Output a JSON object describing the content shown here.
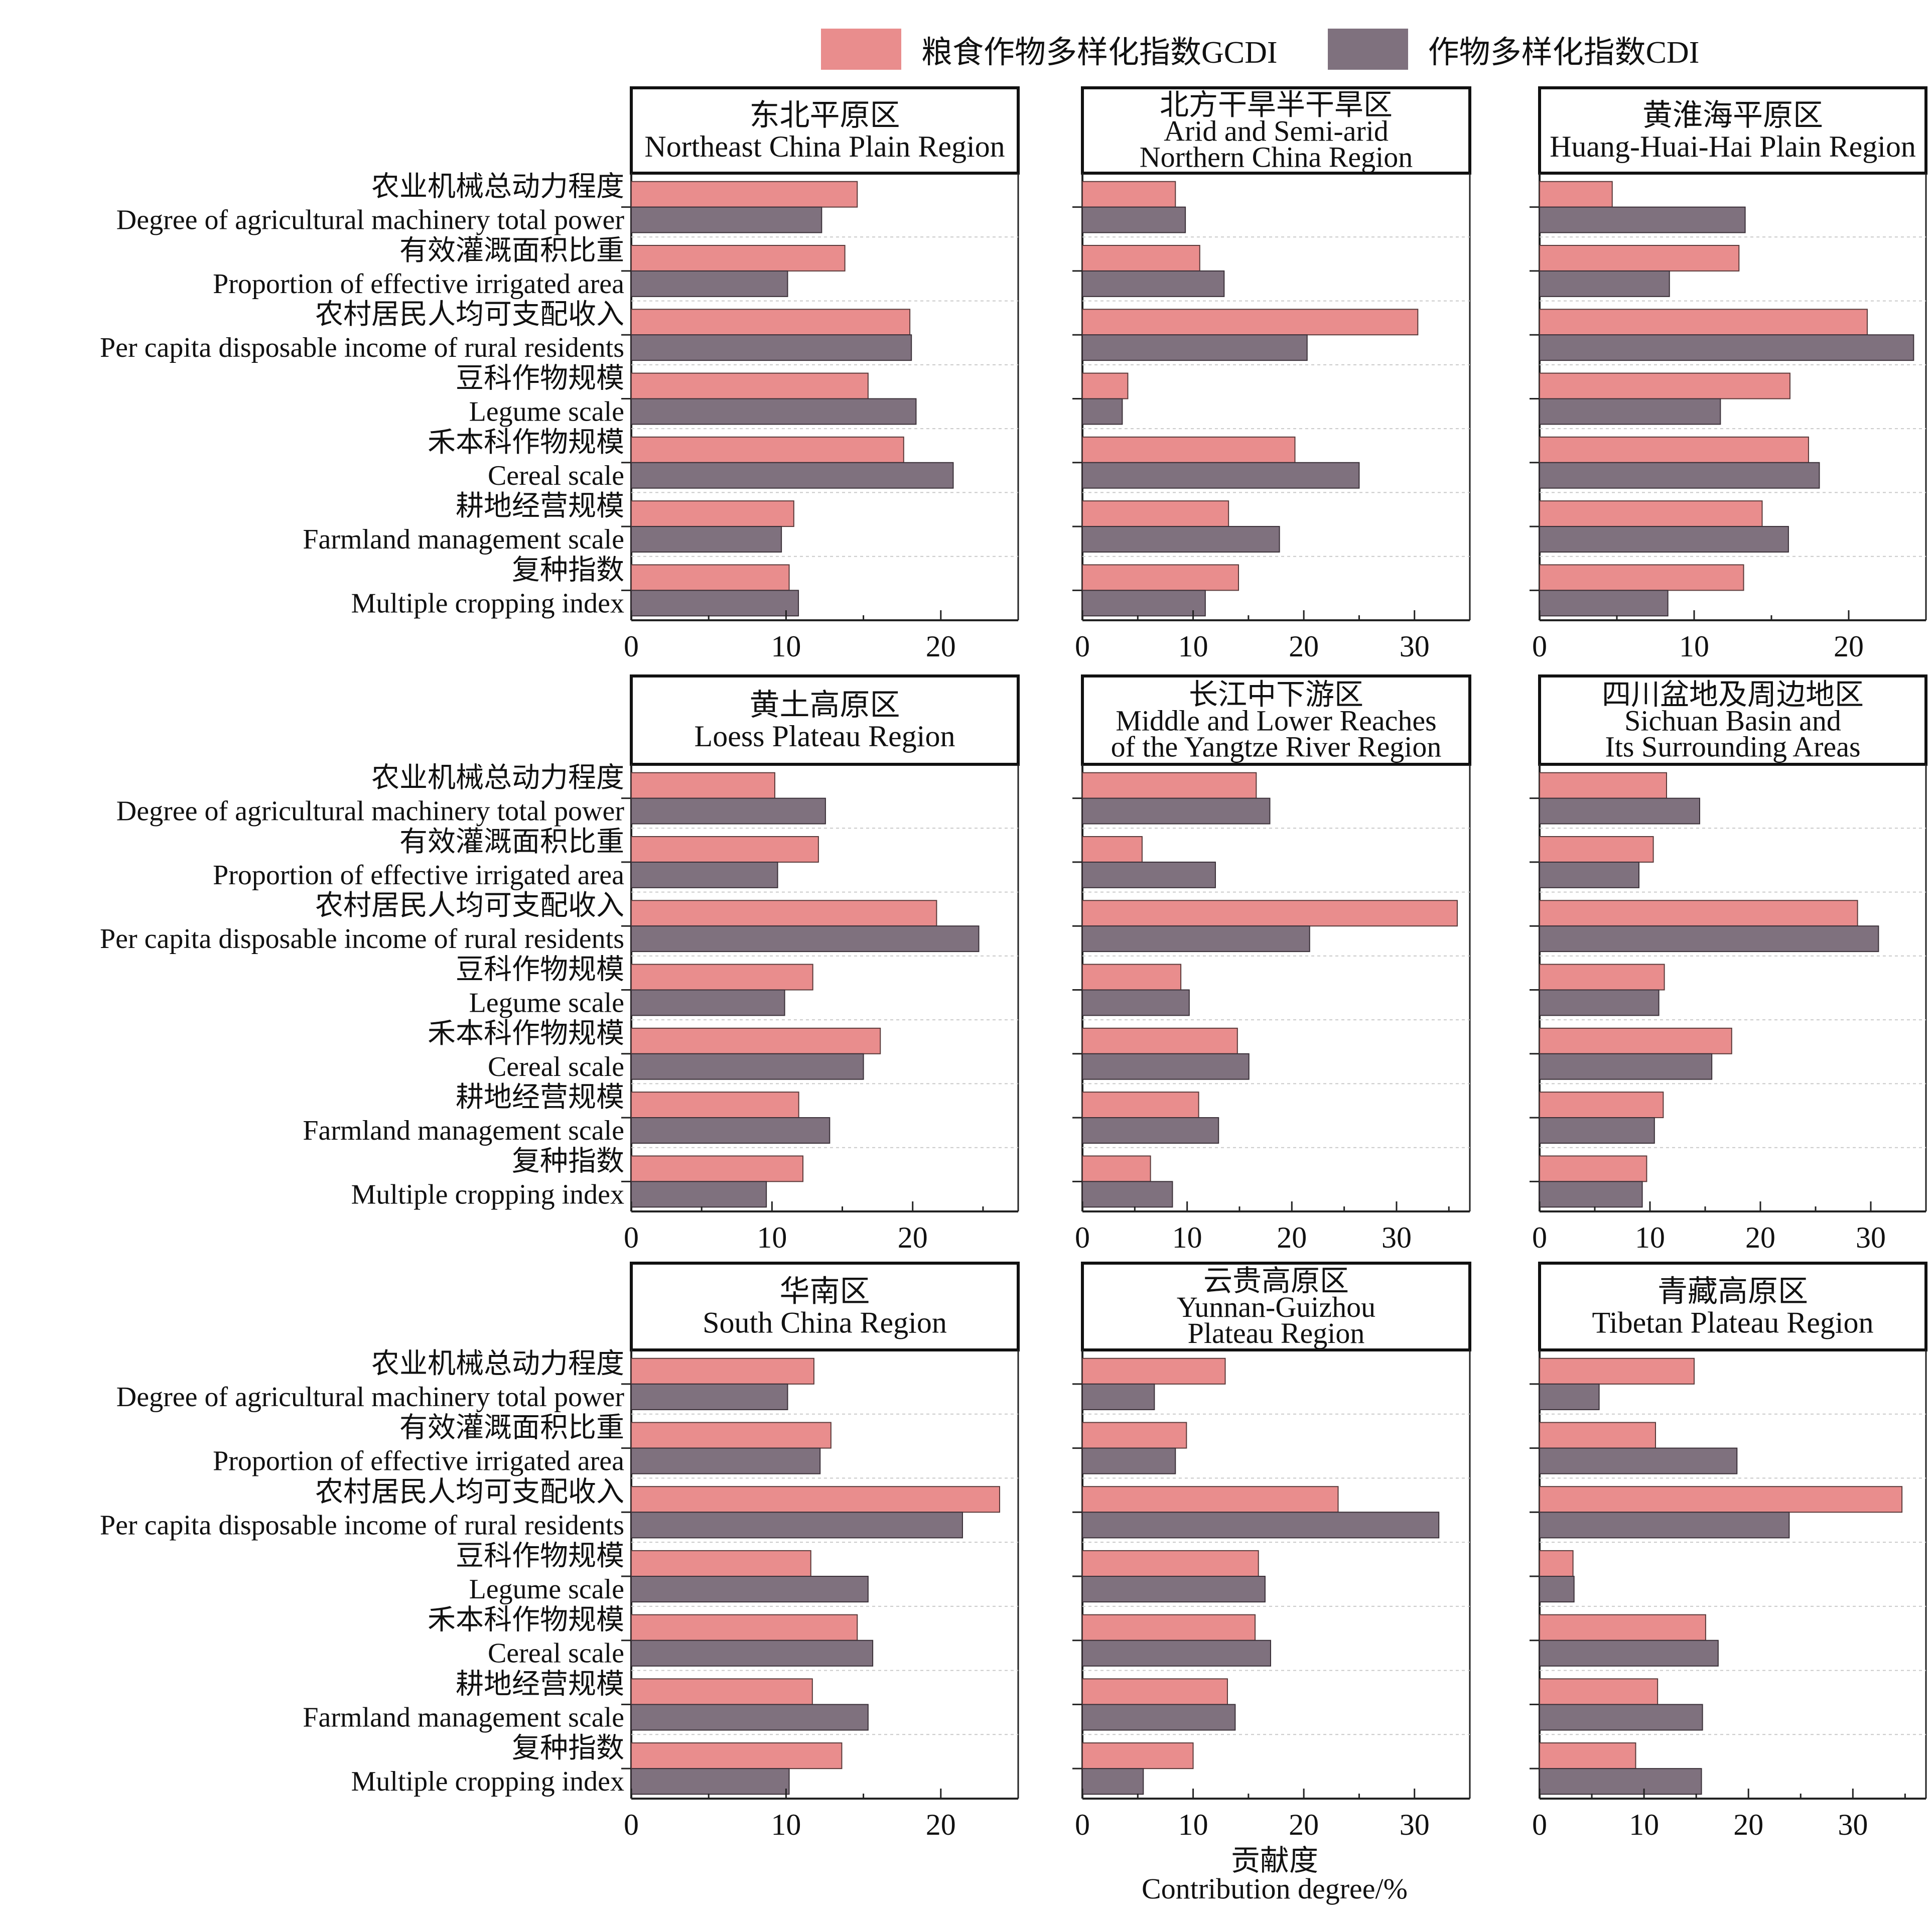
{
  "legend": {
    "gcdi_label": "粮食作物多样化指数GCDI",
    "cdi_label": "作物多样化指数CDI",
    "gcdi_color": "#E98D8D",
    "cdi_color": "#7F717E"
  },
  "x_axis_title": {
    "zh": "贡献度",
    "en": "Contribution degree/%"
  },
  "chart_data": {
    "type": "bar",
    "orientation": "horizontal",
    "layout": "3x3 small multiples",
    "categories": [
      {
        "zh": "农业机械总动力程度",
        "en": "Degree of agricultural machinery total power"
      },
      {
        "zh": "有效灌溉面积比重",
        "en": "Proportion of effective irrigated area"
      },
      {
        "zh": "农村居民人均可支配收入",
        "en": "Per capita disposable income of rural residents"
      },
      {
        "zh": "豆科作物规模",
        "en": "Legume scale"
      },
      {
        "zh": "禾本科作物规模",
        "en": "Cereal scale"
      },
      {
        "zh": "耕地经营规模",
        "en": "Farmland management scale"
      },
      {
        "zh": "复种指数",
        "en": "Multiple cropping index"
      }
    ],
    "series_names": [
      "粮食作物多样化指数GCDI",
      "作物多样化指数CDI"
    ],
    "xlabel": "贡献度 Contribution degree/%",
    "grid": "horizontal dotted separators",
    "legend_position": "top",
    "panels": [
      {
        "title_zh": "东北平原区",
        "title_en": [
          "Northeast China Plain Region"
        ],
        "xlim": [
          0,
          25
        ],
        "ticks": [
          0,
          10,
          20
        ],
        "GCDI": [
          14.6,
          13.8,
          18.0,
          15.3,
          17.6,
          10.5,
          10.2
        ],
        "CDI": [
          12.3,
          10.1,
          18.1,
          18.4,
          20.8,
          9.7,
          10.8
        ]
      },
      {
        "title_zh": "北方干旱半干旱区",
        "title_en": [
          "Arid and Semi-arid",
          "Northern China Region"
        ],
        "xlim": [
          0,
          35
        ],
        "ticks": [
          0,
          10,
          20,
          30
        ],
        "GCDI": [
          8.4,
          10.6,
          30.3,
          4.1,
          19.2,
          13.2,
          14.1
        ],
        "CDI": [
          9.3,
          12.8,
          20.3,
          3.6,
          25.0,
          17.8,
          11.1
        ]
      },
      {
        "title_zh": "黄淮海平原区",
        "title_en": [
          "Huang-Huai-Hai Plain Region"
        ],
        "xlim": [
          0,
          25
        ],
        "ticks": [
          0,
          10,
          20
        ],
        "GCDI": [
          4.7,
          12.9,
          21.2,
          16.2,
          17.4,
          14.4,
          13.2
        ],
        "CDI": [
          13.3,
          8.4,
          24.2,
          11.7,
          18.1,
          16.1,
          8.3
        ]
      },
      {
        "title_zh": "黄土高原区",
        "title_en": [
          "Loess Plateau Region"
        ],
        "xlim": [
          0,
          27.5
        ],
        "ticks": [
          0,
          10,
          20
        ],
        "GCDI": [
          10.2,
          13.3,
          21.7,
          12.9,
          17.7,
          11.9,
          12.2
        ],
        "CDI": [
          13.8,
          10.4,
          24.7,
          10.9,
          16.5,
          14.1,
          9.6
        ]
      },
      {
        "title_zh": "长江中下游区",
        "title_en": [
          "Middle and Lower Reaches",
          "of the Yangtze River Region"
        ],
        "xlim": [
          0,
          37
        ],
        "ticks": [
          0,
          10,
          20,
          30
        ],
        "GCDI": [
          16.6,
          5.7,
          35.8,
          9.4,
          14.8,
          11.1,
          6.5
        ],
        "CDI": [
          17.9,
          12.7,
          21.7,
          10.2,
          15.9,
          13.0,
          8.6
        ]
      },
      {
        "title_zh": "四川盆地及周边地区",
        "title_en": [
          "Sichuan Basin and",
          "Its Surrounding Areas"
        ],
        "xlim": [
          0,
          35
        ],
        "ticks": [
          0,
          10,
          20,
          30
        ],
        "GCDI": [
          11.5,
          10.3,
          28.8,
          11.3,
          17.4,
          11.2,
          9.7
        ],
        "CDI": [
          14.5,
          9.0,
          30.7,
          10.8,
          15.6,
          10.4,
          9.3
        ]
      },
      {
        "title_zh": "华南区",
        "title_en": [
          "South China Region"
        ],
        "xlim": [
          0,
          25
        ],
        "ticks": [
          0,
          10,
          20
        ],
        "GCDI": [
          11.8,
          12.9,
          23.8,
          11.6,
          14.6,
          11.7,
          13.6
        ],
        "CDI": [
          10.1,
          12.2,
          21.4,
          15.3,
          15.6,
          15.3,
          10.2
        ]
      },
      {
        "title_zh": "云贵高原区",
        "title_en": [
          "Yunnan-Guizhou",
          "Plateau Region"
        ],
        "xlim": [
          0,
          35
        ],
        "ticks": [
          0,
          10,
          20,
          30
        ],
        "GCDI": [
          12.9,
          9.4,
          23.1,
          15.9,
          15.6,
          13.1,
          10.0
        ],
        "CDI": [
          6.5,
          8.4,
          32.2,
          16.5,
          17.0,
          13.8,
          5.5
        ]
      },
      {
        "title_zh": "青藏高原区",
        "title_en": [
          "Tibetan Plateau Region"
        ],
        "xlim": [
          0,
          37
        ],
        "ticks": [
          0,
          10,
          20,
          30
        ],
        "GCDI": [
          14.8,
          11.1,
          34.7,
          3.2,
          15.9,
          11.3,
          9.2
        ],
        "CDI": [
          5.7,
          18.9,
          23.9,
          3.3,
          17.1,
          15.6,
          15.5
        ]
      }
    ]
  }
}
